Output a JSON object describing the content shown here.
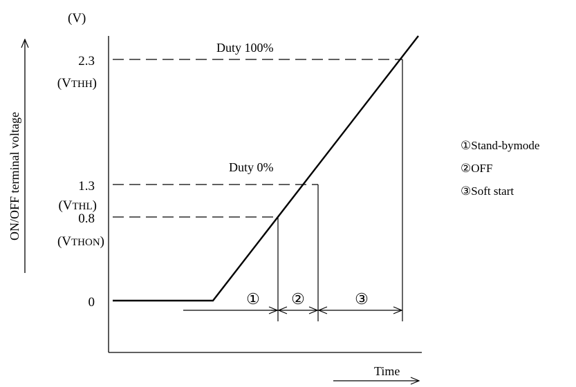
{
  "unit_label": "(V)",
  "y_axis_label": "ON/OFF terminal voltage",
  "x_axis_label": "Time",
  "levels": [
    {
      "value": "2.3",
      "name": "(VTHH)",
      "name_main": "(V",
      "name_sub": "THH",
      "name_close": ")"
    },
    {
      "value": "1.3",
      "name": "(VTHL)",
      "name_main": "(V",
      "name_sub": "THL",
      "name_close": ")"
    },
    {
      "value": "0.8",
      "name": "(VTHON)",
      "name_main": "(V",
      "name_sub": "THON",
      "name_close": ")"
    },
    {
      "value": "0"
    }
  ],
  "annotations": {
    "duty_100": "Duty 100%",
    "duty_0": "Duty 0%"
  },
  "regions": [
    {
      "marker": "①",
      "label": "Stand-bymode"
    },
    {
      "marker": "②",
      "label": "OFF"
    },
    {
      "marker": "③",
      "label": "Soft start"
    }
  ],
  "legend": [
    "①Stand-bymode",
    "②OFF",
    "③Soft start"
  ]
}
